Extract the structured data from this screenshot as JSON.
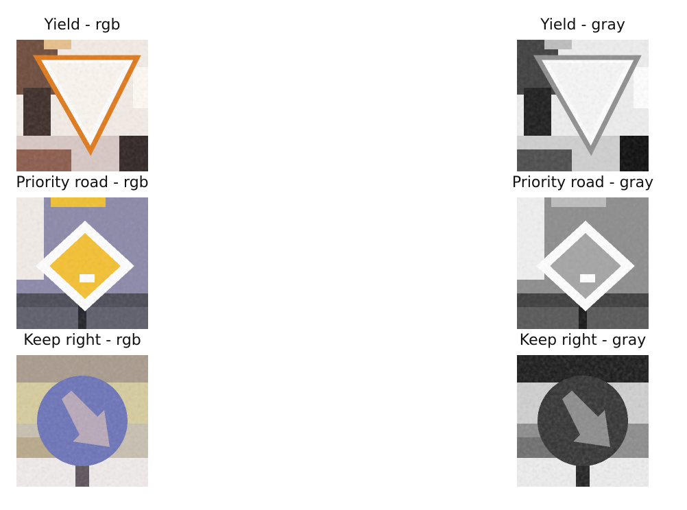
{
  "figure": {
    "rows": [
      {
        "sign": "yield",
        "cells": [
          {
            "title": "Yield - rgb",
            "mode": "rgb"
          },
          {
            "title": "Yield - gray",
            "mode": "gray"
          }
        ]
      },
      {
        "sign": "priority-road",
        "cells": [
          {
            "title": "Priority road - rgb",
            "mode": "rgb"
          },
          {
            "title": "Priority road - gray",
            "mode": "gray"
          }
        ]
      },
      {
        "sign": "keep-right",
        "cells": [
          {
            "title": "Keep right - rgb",
            "mode": "rgb"
          },
          {
            "title": "Keep right - gray",
            "mode": "gray"
          }
        ]
      }
    ]
  },
  "colors": {
    "yield_border": "#e07818",
    "priority_fill": "#f5c030",
    "keep_right_blue": "#6a72b8"
  }
}
